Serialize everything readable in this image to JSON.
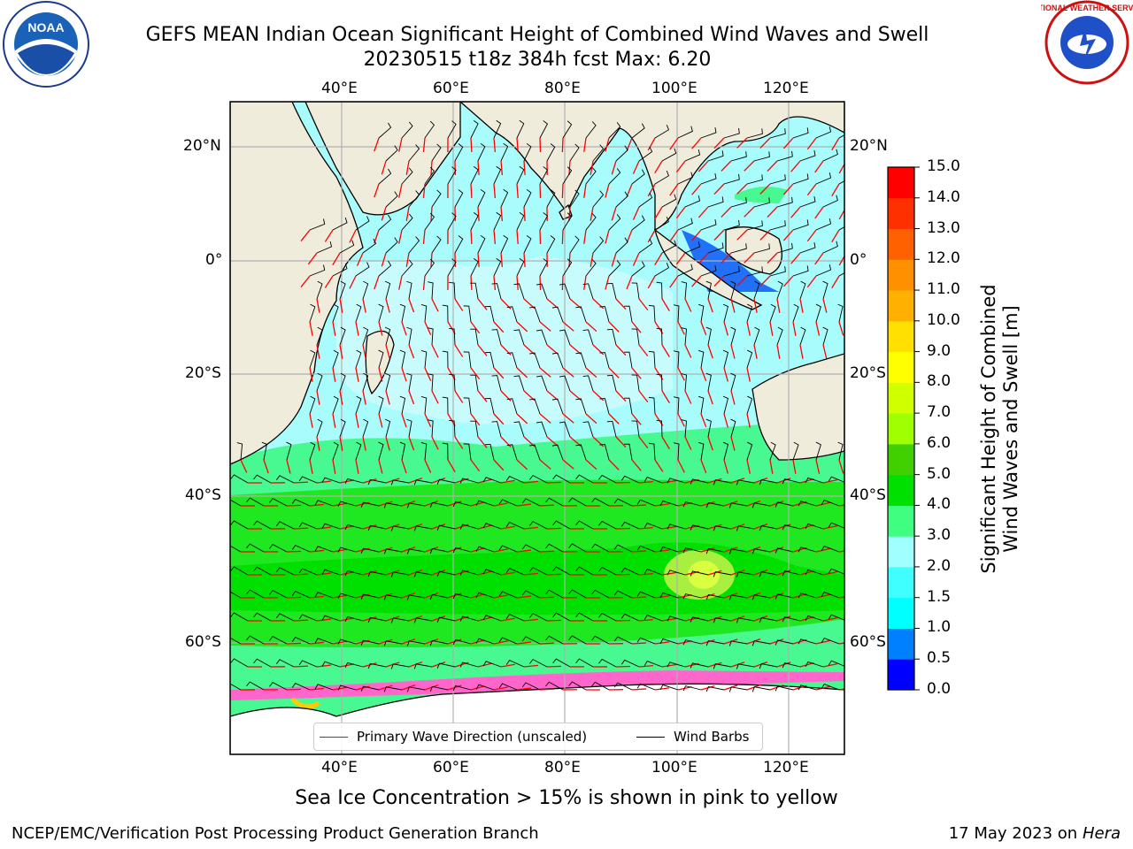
{
  "header": {
    "title_line1": "GEFS MEAN Indian Ocean Significant Height of Combined Wind Waves and Swell",
    "title_line2": "20230515 t18z 384h fcst   Max: 6.20"
  },
  "logos": {
    "left": {
      "name": "noaa-logo",
      "text": "NOAA"
    },
    "right": {
      "name": "nws-logo",
      "text": "NATIONAL WEATHER SERVICE"
    }
  },
  "map": {
    "lon_labels": [
      "40°E",
      "60°E",
      "80°E",
      "100°E",
      "120°E"
    ],
    "lat_labels": [
      "20°N",
      "0°",
      "20°S",
      "40°S",
      "60°S"
    ],
    "lon_range": [
      20,
      130
    ],
    "lat_range": [
      -70,
      28
    ],
    "colors": {
      "land": "#efecdc",
      "grid": "#b0b0b0",
      "ice": "#ffffff",
      "wave_arrow": "#ff0000",
      "barb": "#000000"
    }
  },
  "legend": {
    "wave_label": "Primary Wave Direction (unscaled)",
    "barb_label": "Wind Barbs"
  },
  "colorbar": {
    "ticks": [
      "0.0",
      "0.5",
      "1.0",
      "1.5",
      "2.0",
      "3.0",
      "4.0",
      "5.0",
      "6.0",
      "7.0",
      "8.0",
      "9.0",
      "10.0",
      "11.0",
      "12.0",
      "13.0",
      "14.0",
      "15.0"
    ],
    "colors": [
      "#0000ff",
      "#0080ff",
      "#00ffff",
      "#40ffff",
      "#a0ffff",
      "#40ff80",
      "#00e000",
      "#40d000",
      "#a0ff00",
      "#d0ff00",
      "#ffff00",
      "#ffe000",
      "#ffb000",
      "#ff9000",
      "#ff6000",
      "#ff3000",
      "#ff0000"
    ],
    "title_line1": "Significant Height of Combined",
    "title_line2": "Wind Waves and Swell [m]"
  },
  "footer": {
    "note": "Sea Ice Concentration > 15% is shown in pink to yellow",
    "credit": "NCEP/EMC/Verification Post Processing Product Generation Branch",
    "date": "17 May 2023 on",
    "machine": "Hera"
  }
}
